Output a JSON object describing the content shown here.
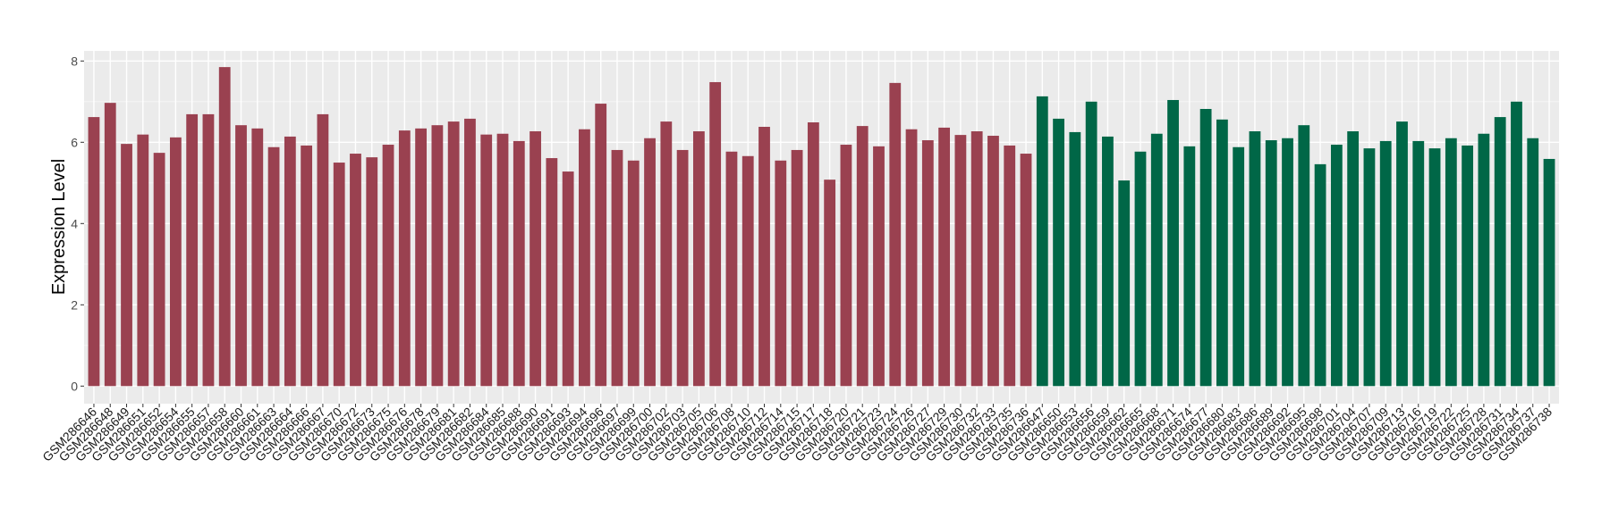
{
  "chart_data": {
    "type": "bar",
    "title": "",
    "xlabel": "",
    "ylabel": "Expression Level",
    "ylim": [
      0,
      8
    ],
    "yticks": [
      "0",
      "2",
      "4",
      "6",
      "8"
    ],
    "grid": true,
    "legend": "none",
    "series": [
      {
        "color": "#9A4150",
        "categories": [
          "GSM286646",
          "GSM286648",
          "GSM286649",
          "GSM286651",
          "GSM286652",
          "GSM286654",
          "GSM286655",
          "GSM286657",
          "GSM286658",
          "GSM286660",
          "GSM286661",
          "GSM286663",
          "GSM286664",
          "GSM286666",
          "GSM286667",
          "GSM286670",
          "GSM286672",
          "GSM286673",
          "GSM286675",
          "GSM286676",
          "GSM286678",
          "GSM286679",
          "GSM286681",
          "GSM286682",
          "GSM286684",
          "GSM286685",
          "GSM286688",
          "GSM286690",
          "GSM286691",
          "GSM286693",
          "GSM286694",
          "GSM286696",
          "GSM286697",
          "GSM286699",
          "GSM286700",
          "GSM286702",
          "GSM286703",
          "GSM286705",
          "GSM286706",
          "GSM286708",
          "GSM286710",
          "GSM286712",
          "GSM286714",
          "GSM286715",
          "GSM286717",
          "GSM286718",
          "GSM286720",
          "GSM286721",
          "GSM286723",
          "GSM286724",
          "GSM286726",
          "GSM286727",
          "GSM286729",
          "GSM286730",
          "GSM286732",
          "GSM286733",
          "GSM286735",
          "GSM286736"
        ],
        "values": [
          6.62,
          6.97,
          5.96,
          6.19,
          5.74,
          6.12,
          6.69,
          6.69,
          7.85,
          6.42,
          6.34,
          5.88,
          6.14,
          5.92,
          6.69,
          5.5,
          5.72,
          5.63,
          5.94,
          6.29,
          6.34,
          6.42,
          6.51,
          6.58,
          6.19,
          6.21,
          6.03,
          6.27,
          5.61,
          5.28,
          6.32,
          6.95,
          5.81,
          5.55,
          6.1,
          6.51,
          5.81,
          6.27,
          7.48,
          5.77,
          5.66,
          6.38,
          5.55,
          5.81,
          6.49,
          5.08,
          5.94,
          6.4,
          5.9,
          7.46,
          6.32,
          6.05,
          6.36,
          6.18,
          6.27,
          6.16,
          5.92,
          5.72
        ]
      },
      {
        "color": "#006747",
        "categories": [
          "GSM286647",
          "GSM286650",
          "GSM286653",
          "GSM286656",
          "GSM286659",
          "GSM286662",
          "GSM286665",
          "GSM286668",
          "GSM286671",
          "GSM286674",
          "GSM286677",
          "GSM286680",
          "GSM286683",
          "GSM286686",
          "GSM286689",
          "GSM286692",
          "GSM286695",
          "GSM286698",
          "GSM286701",
          "GSM286704",
          "GSM286707",
          "GSM286709",
          "GSM286713",
          "GSM286716",
          "GSM286719",
          "GSM286722",
          "GSM286725",
          "GSM286728",
          "GSM286731",
          "GSM286734",
          "GSM286737",
          "GSM286738"
        ],
        "values": [
          7.13,
          6.58,
          6.25,
          7.0,
          6.14,
          5.06,
          5.77,
          6.21,
          7.04,
          5.9,
          6.82,
          6.56,
          5.88,
          6.27,
          6.05,
          6.1,
          6.42,
          5.46,
          5.94,
          6.27,
          5.85,
          6.03,
          6.51,
          6.03,
          5.85,
          6.1,
          5.92,
          6.21,
          6.62,
          7.0,
          6.1,
          5.59
        ]
      }
    ],
    "panel_color": "#EBEBEB"
  }
}
